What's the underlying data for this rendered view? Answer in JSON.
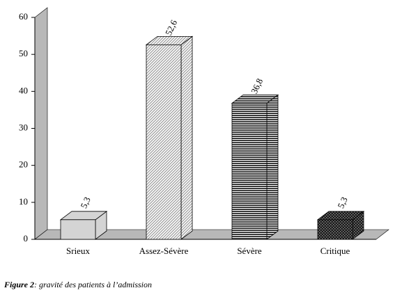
{
  "chart_data": {
    "type": "bar3d",
    "categories": [
      "Srieux",
      "Assez-Sévère",
      "Sévère",
      "Critique"
    ],
    "values": [
      5.3,
      52.6,
      36.8,
      5.3
    ],
    "value_labels": [
      "5,3",
      "52,6",
      "36,8",
      "5,3"
    ],
    "colors": [
      "#d4d4d4",
      "#9a9a9a",
      "#3a3a3a",
      "#1a1a1a"
    ],
    "patterns": [
      "solid",
      "diagonal",
      "horizontal",
      "checker"
    ],
    "ylim": [
      0,
      60
    ],
    "yticks": [
      0,
      10,
      20,
      30,
      40,
      50,
      60
    ]
  },
  "caption": {
    "label": "Figure 2",
    "text": ": gravité des patients à l’admission"
  }
}
